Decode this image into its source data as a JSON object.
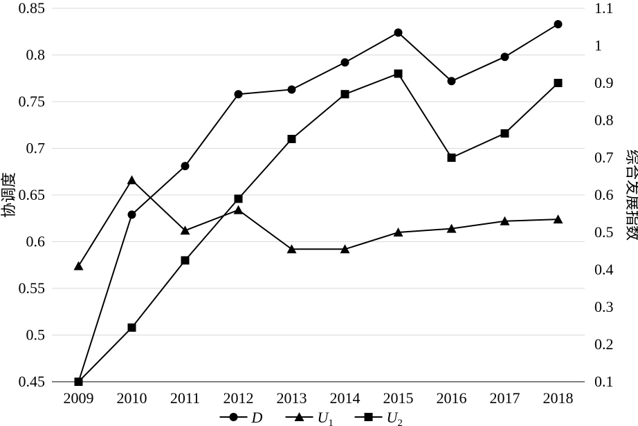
{
  "chart_data": {
    "type": "line",
    "categories": [
      "2009",
      "2010",
      "2011",
      "2012",
      "2013",
      "2014",
      "2015",
      "2016",
      "2017",
      "2018"
    ],
    "y_left": {
      "label": "协调度",
      "lim": [
        0.45,
        0.85
      ],
      "ticks": [
        0.45,
        0.5,
        0.55,
        0.6,
        0.65,
        0.7,
        0.75,
        0.8,
        0.85
      ],
      "tick_labels": [
        "0.45",
        "0.5",
        "0.55",
        "0.6",
        "0.65",
        "0.7",
        "0.75",
        "0.8",
        "0.85"
      ]
    },
    "y_right": {
      "label": "综合发展指数",
      "lim": [
        0.1,
        1.1
      ],
      "ticks": [
        0.1,
        0.2,
        0.3,
        0.4,
        0.5,
        0.6,
        0.7,
        0.8,
        0.9,
        1.0,
        1.1
      ],
      "tick_labels": [
        "0.1",
        "0.2",
        "0.3",
        "0.4",
        "0.5",
        "0.6",
        "0.7",
        "0.8",
        "0.9",
        "1",
        "1.1"
      ]
    },
    "grid": "horizontal",
    "legend_position": "bottom",
    "series": [
      {
        "name": "D",
        "subscript": "",
        "marker": "circle",
        "axis": "left",
        "values": [
          0.45,
          0.629,
          0.681,
          0.758,
          0.763,
          0.792,
          0.824,
          0.772,
          0.798,
          0.833
        ]
      },
      {
        "name": "U",
        "subscript": "1",
        "marker": "triangle",
        "axis": "right",
        "values": [
          0.41,
          0.64,
          0.505,
          0.56,
          0.455,
          0.455,
          0.5,
          0.51,
          0.53,
          0.535
        ]
      },
      {
        "name": "U",
        "subscript": "2",
        "marker": "square",
        "axis": "right",
        "values": [
          0.1,
          0.245,
          0.425,
          0.59,
          0.75,
          0.87,
          0.925,
          0.7,
          0.765,
          0.9
        ]
      }
    ]
  }
}
